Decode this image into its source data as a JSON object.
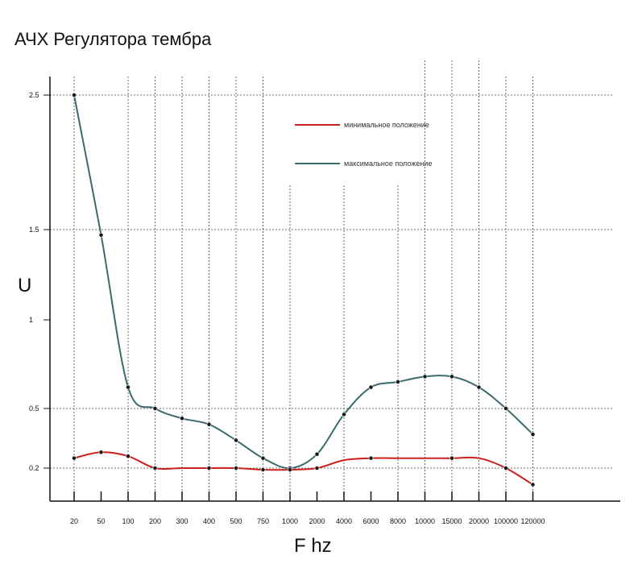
{
  "chart_data": {
    "type": "line",
    "title": "АЧХ Регулятора тембра",
    "xlabel": "F hz",
    "ylabel": "U",
    "categories": [
      "20",
      "50",
      "100",
      "200",
      "300",
      "400",
      "500",
      "750",
      "1000",
      "2000",
      "4000",
      "6000",
      "8000",
      "10000",
      "15000",
      "20000",
      "100000",
      "120000"
    ],
    "y_ticks": [
      "0.2",
      "0.5",
      "1",
      "1.5",
      "2.5"
    ],
    "series": [
      {
        "name": "минимальное положение",
        "color": "#cc1f1a",
        "values": [
          0.25,
          0.28,
          0.26,
          0.2,
          0.2,
          0.2,
          0.2,
          0.19,
          0.19,
          0.2,
          0.24,
          0.25,
          0.25,
          0.25,
          0.25,
          0.25,
          0.2,
          0.1
        ],
        "markers": [
          true,
          true,
          true,
          true,
          false,
          true,
          true,
          true,
          true,
          true,
          false,
          true,
          false,
          false,
          true,
          false,
          true,
          true
        ]
      },
      {
        "name": "максимальное положение",
        "color": "#3a6b6f",
        "values": [
          2.5,
          1.47,
          0.62,
          0.5,
          0.45,
          0.42,
          0.34,
          0.25,
          0.2,
          0.27,
          0.47,
          0.62,
          0.65,
          0.68,
          0.68,
          0.62,
          0.5,
          0.37
        ],
        "markers": [
          true,
          true,
          true,
          true,
          true,
          true,
          true,
          true,
          true,
          true,
          true,
          true,
          true,
          true,
          true,
          true,
          true,
          true
        ]
      }
    ],
    "legend": [
      {
        "label": "минимальное положение",
        "color": "#cc1f1a"
      },
      {
        "label": "максимальное положение",
        "color": "#3a6b6f"
      }
    ],
    "legend_placement": "top-center",
    "grid": true,
    "ylim": [
      0,
      2.7
    ]
  }
}
